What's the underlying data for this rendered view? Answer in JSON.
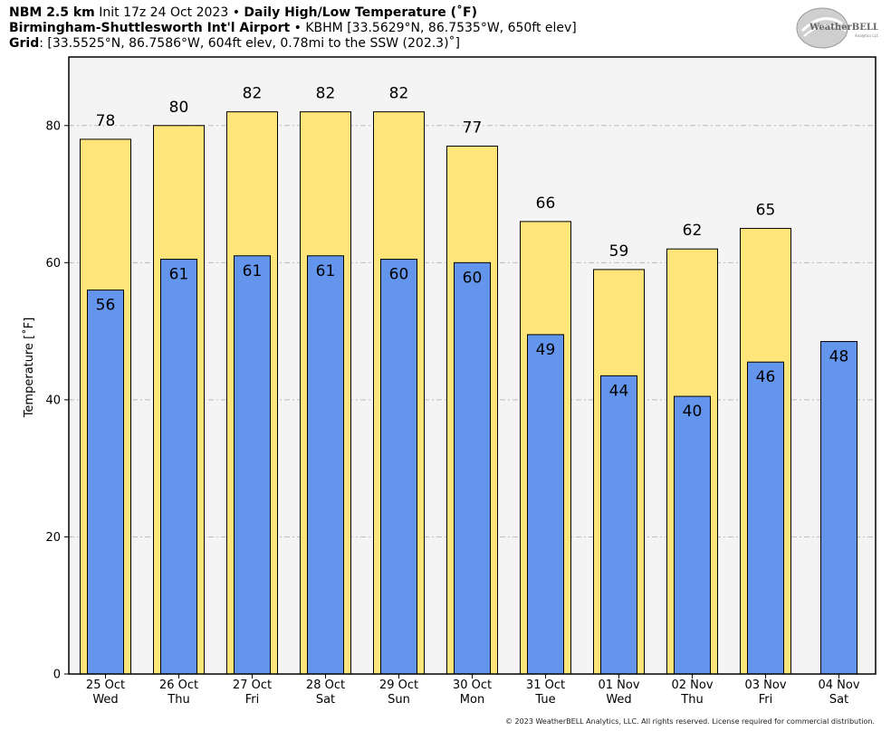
{
  "header": {
    "line1": {
      "product": "NBM 2.5 km",
      "init": "Init 17z 24 Oct 2023",
      "sep": "•",
      "title": "Daily High/Low Temperature (˚F)"
    },
    "line2": {
      "station": "Birmingham-Shuttlesworth Int'l Airport",
      "sep": "•",
      "info": "KBHM [33.5629°N, 86.7535°W, 650ft elev]"
    },
    "line3": {
      "label": "Grid",
      "info": ": [33.5525°N, 86.7586°W, 604ft elev, 0.78mi to the SSW (202.3)˚]"
    }
  },
  "logo": {
    "text": "WeatherBELL",
    "sub": "Analytics LLC"
  },
  "footer": "© 2023 WeatherBELL Analytics, LLC. All rights reserved. License required for commercial distribution.",
  "colors": {
    "high": "#FFE57A",
    "low": "#6495ED",
    "background": "#F4F4F4",
    "grid": "#BBBBBB"
  },
  "chart_data": {
    "type": "bar",
    "ylabel": "Temperature [˚F]",
    "ylim": [
      0,
      90
    ],
    "yticks": [
      0,
      20,
      40,
      60,
      80
    ],
    "grid": true,
    "categories": [
      [
        "25 Oct",
        "Wed"
      ],
      [
        "26 Oct",
        "Thu"
      ],
      [
        "27 Oct",
        "Fri"
      ],
      [
        "28 Oct",
        "Sat"
      ],
      [
        "29 Oct",
        "Sun"
      ],
      [
        "30 Oct",
        "Mon"
      ],
      [
        "31 Oct",
        "Tue"
      ],
      [
        "01 Nov",
        "Wed"
      ],
      [
        "02 Nov",
        "Thu"
      ],
      [
        "03 Nov",
        "Fri"
      ],
      [
        "04 Nov",
        "Sat"
      ]
    ],
    "series": [
      {
        "key": "high",
        "values": [
          78,
          80,
          82,
          82,
          82,
          77,
          66,
          59,
          62,
          65,
          null
        ],
        "labels": [
          "78",
          "80",
          "82",
          "82",
          "82",
          "77",
          "66",
          "59",
          "62",
          "65",
          ""
        ]
      },
      {
        "key": "low",
        "values": [
          56,
          60.5,
          61,
          61,
          60.5,
          60,
          49.5,
          43.5,
          40.5,
          45.5,
          48.5
        ],
        "labels": [
          "56",
          "61",
          "61",
          "61",
          "60",
          "60",
          "49",
          "44",
          "40",
          "46",
          "48"
        ]
      }
    ]
  }
}
